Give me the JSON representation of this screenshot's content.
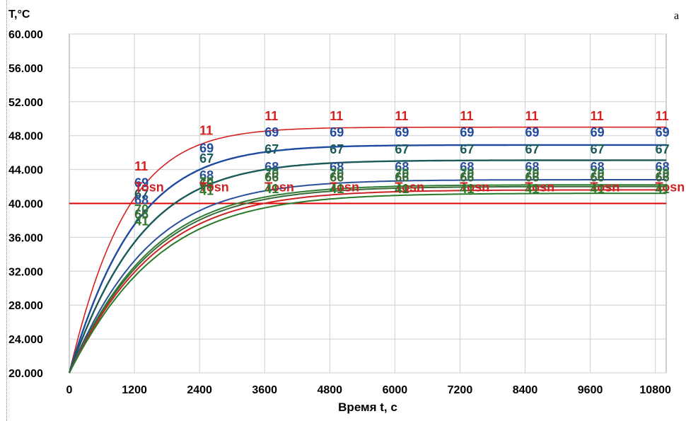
{
  "panel_letter": "a",
  "chart_data": {
    "type": "line",
    "ylabel": "T,°C",
    "xlabel": "Время t, с",
    "xlim": [
      0,
      11000
    ],
    "ylim": [
      20,
      60
    ],
    "x_ticks": [
      0,
      1200,
      2400,
      3600,
      4800,
      6000,
      7200,
      8400,
      9600,
      10800
    ],
    "y_ticks": [
      "20.000",
      "24.000",
      "28.000",
      "32.000",
      "36.000",
      "40.000",
      "44.000",
      "48.000",
      "52.000",
      "56.000",
      "60.000"
    ],
    "grid": true,
    "label_x_positions": [
      1200,
      2400,
      3600,
      4800,
      6000,
      7200,
      8400,
      9600,
      10800
    ],
    "reference_line": {
      "y": 40,
      "color": "#e00000"
    },
    "series": [
      {
        "name": "11",
        "color": "#d62020",
        "steady": 49.0,
        "tau": 700,
        "label_y": 49.8,
        "label_y_first": 48.1,
        "label_y_early": 43.9,
        "stroke": 1.6
      },
      {
        "name": "69",
        "color": "#1e4aa0",
        "steady": 46.9,
        "tau": 820,
        "label_y": 47.9,
        "label_y_first": 46.0,
        "label_y_early": 41.9,
        "stroke": 2.4
      },
      {
        "name": "67",
        "color": "#1a5a5a",
        "steady": 45.1,
        "tau": 900,
        "label_y": 45.9,
        "label_y_first": 44.8,
        "label_y_early": 40.6,
        "stroke": 2.4
      },
      {
        "name": "68",
        "color": "#2a4f9a",
        "steady": 42.8,
        "tau": 980,
        "label_y": 43.8,
        "label_y_first": 42.8,
        "label_y_early": 39.9,
        "stroke": 2.0
      },
      {
        "name": "70",
        "color": "#2e7d32",
        "steady": 42.2,
        "tau": 1020,
        "label_y": 43.0,
        "label_y_first": 42.0,
        "label_y_early": 38.8,
        "stroke": 2.0
      },
      {
        "name": "66",
        "color": "#3a6a3a",
        "steady": 42.0,
        "tau": 1040,
        "label_y": 42.6,
        "label_y_first": 41.8,
        "label_y_early": 38.2,
        "stroke": 2.0
      },
      {
        "name": "Tosn",
        "color": "#cc2222",
        "steady": 41.6,
        "tau": 1060,
        "label_y": 41.4,
        "label_y_first": 41.4,
        "label_y_early": 41.4,
        "stroke": 2.0
      },
      {
        "name": "41",
        "color": "#2a7a2a",
        "steady": 41.2,
        "tau": 1100,
        "label_y": 41.2,
        "label_y_first": 41.0,
        "label_y_early": 37.4,
        "stroke": 2.0
      }
    ]
  }
}
